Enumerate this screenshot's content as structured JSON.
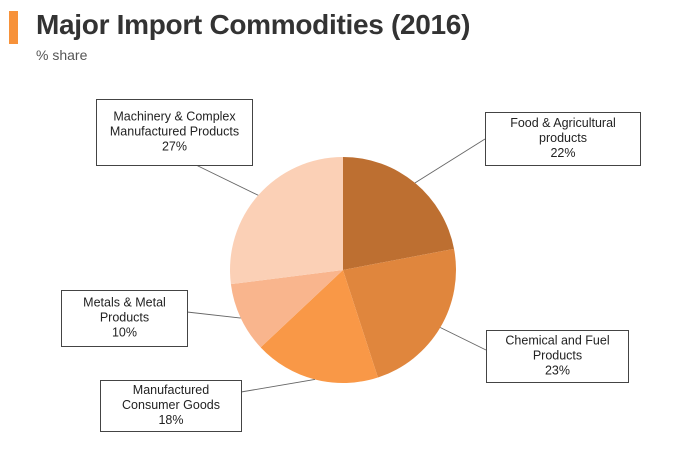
{
  "title": "Major Import Commodities (2016)",
  "subtitle": "% share",
  "colors": {
    "accent": "#f7923a"
  },
  "chart_data": {
    "type": "pie",
    "unit": "%",
    "slices": [
      {
        "label": [
          "Food & Agricultural",
          "products"
        ],
        "value": 22,
        "value_label": "22%",
        "color": "#bd6f31"
      },
      {
        "label": [
          "Chemical and Fuel",
          "Products"
        ],
        "value": 23,
        "value_label": "23%",
        "color": "#e0863d"
      },
      {
        "label": [
          "Manufactured",
          "Consumer Goods"
        ],
        "value": 18,
        "value_label": "18%",
        "color": "#f99847"
      },
      {
        "label": [
          "Metals & Metal",
          "Products"
        ],
        "value": 10,
        "value_label": "10%",
        "color": "#f9b58d"
      },
      {
        "label": [
          "Machinery & Complex",
          "Manufactured Products"
        ],
        "value": 27,
        "value_label": "27%",
        "color": "#fbd0b6"
      }
    ]
  }
}
